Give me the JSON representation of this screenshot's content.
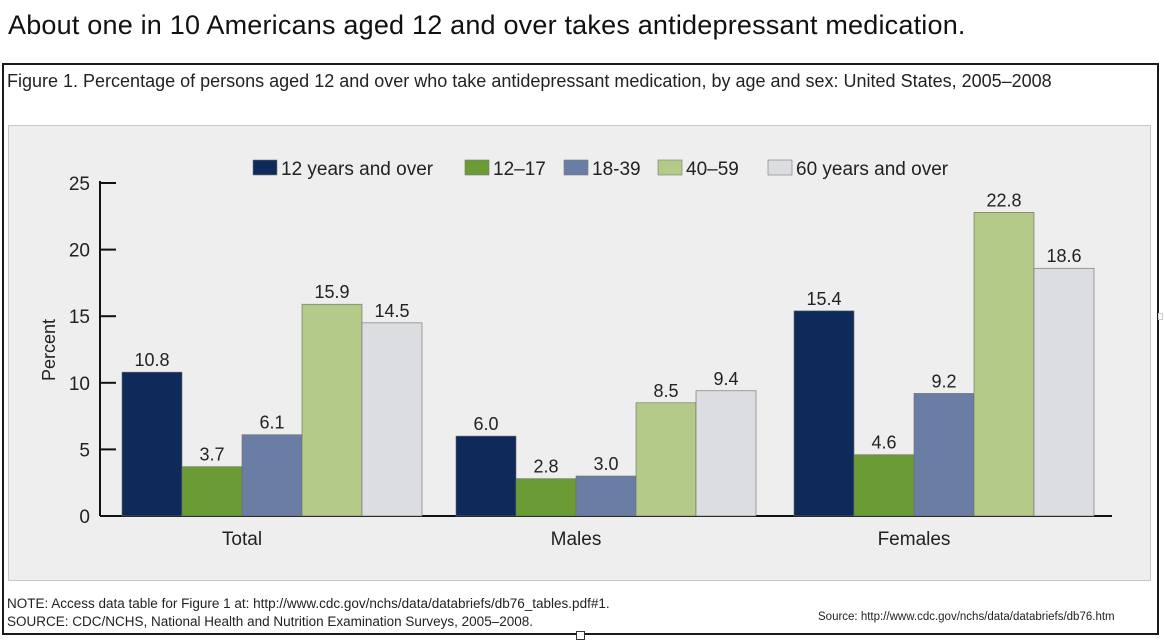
{
  "headline": "About one in 10 Americans aged 12 and over takes antidepressant medication.",
  "figure": {
    "title": "Figure 1. Percentage of persons aged 12 and over who take antidepressant medication, by age and sex: United States, 2005–2008",
    "note": "NOTE: Access data table for Figure 1 at: http://www.cdc.gov/nchs/data/databriefs/db76_tables.pdf#1.",
    "source": "SOURCE: CDC/NCHS, National Health and Nutrition Examination Surveys, 2005–2008.",
    "source_credit": "Source: http://www.cdc.gov/nchs/data/databriefs/db76.htm"
  },
  "chart_data": {
    "type": "bar",
    "ylabel": "Percent",
    "xlabel": "",
    "ylim": [
      0,
      25
    ],
    "yticks": [
      0,
      5,
      10,
      15,
      20,
      25
    ],
    "categories": [
      "Total",
      "Males",
      "Females"
    ],
    "legend_position": "top",
    "grid": false,
    "series": [
      {
        "name": "12 years and over",
        "color": "#0e2a5a",
        "values": [
          10.8,
          6.0,
          15.4
        ],
        "labels": [
          "10.8",
          "6.0",
          "15.4"
        ]
      },
      {
        "name": "12–17",
        "color": "#6b9b34",
        "values": [
          3.7,
          2.8,
          4.6
        ],
        "labels": [
          "3.7",
          "2.8",
          "4.6"
        ]
      },
      {
        "name": "18-39",
        "color": "#6a7ea5",
        "values": [
          6.1,
          3.0,
          9.2
        ],
        "labels": [
          "6.1",
          "3.0",
          "9.2"
        ]
      },
      {
        "name": "40–59",
        "color": "#b3ca88",
        "values": [
          15.9,
          8.5,
          22.8
        ],
        "labels": [
          "15.9",
          "8.5",
          "22.8"
        ]
      },
      {
        "name": "60 years and over",
        "color": "#dcdde0",
        "values": [
          14.5,
          9.4,
          18.6
        ],
        "labels": [
          "14.5",
          "9.4",
          "18.6"
        ]
      }
    ]
  }
}
